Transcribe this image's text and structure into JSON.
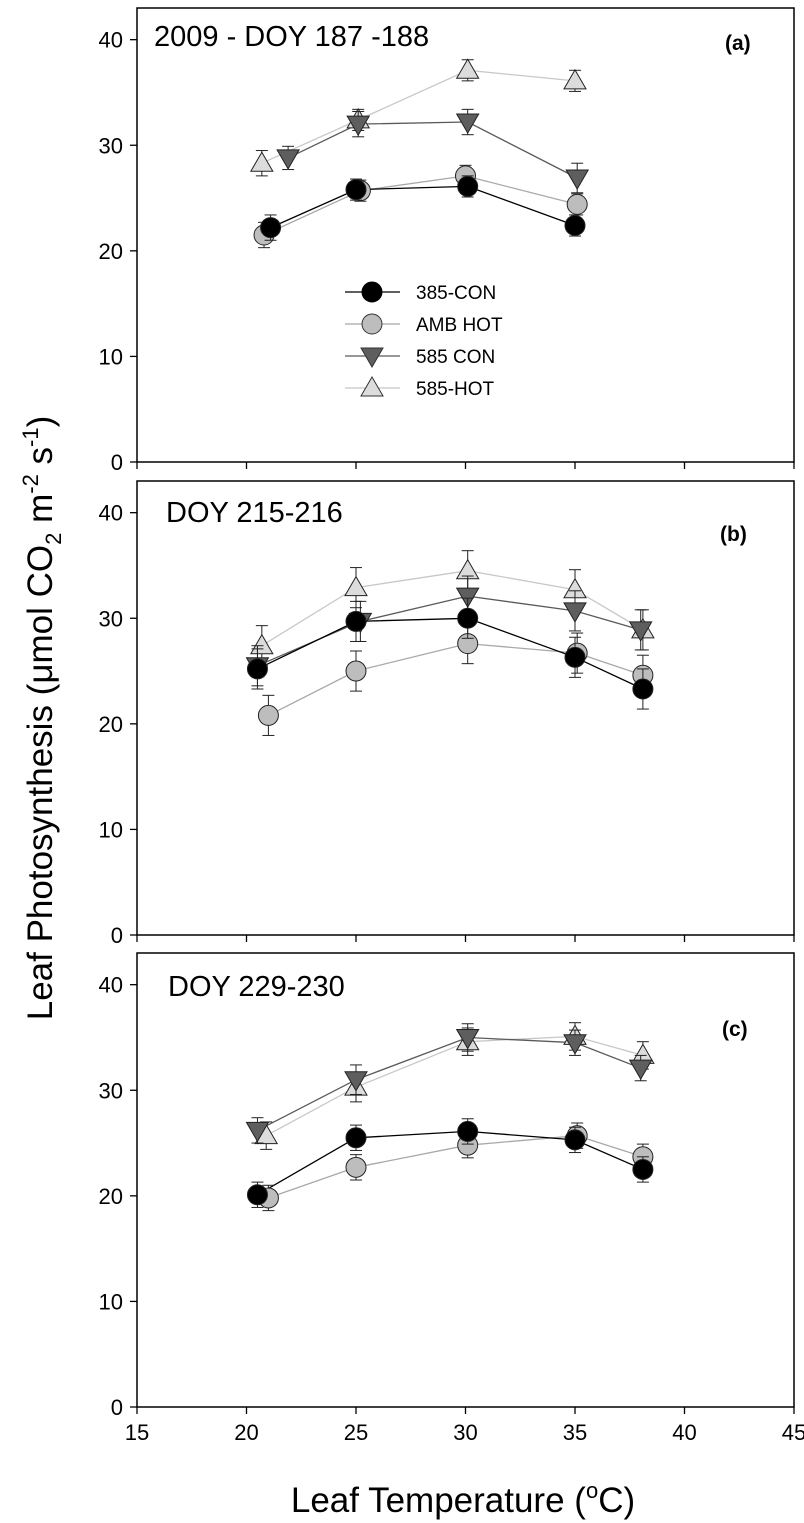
{
  "chart_data": {
    "type": "line",
    "x_axis": {
      "title_main": "Leaf Temperature (",
      "title_sup": "o",
      "title_end": "C)",
      "range": [
        15,
        45
      ],
      "ticks": [
        "15",
        "20",
        "25",
        "30",
        "35",
        "40",
        "45"
      ]
    },
    "y_axis": {
      "title_main": "Leaf  Photosynthesis (μmol CO",
      "title_sub": "2",
      "title_mid": " m",
      "title_sup1": "-2",
      "title_mid2": " s",
      "title_sup2": "-1",
      "title_end": ")",
      "range": [
        0,
        43
      ],
      "ticks": [
        "0",
        "10",
        "20",
        "30",
        "40"
      ]
    },
    "legend": {
      "location": "panel (a), center-left",
      "entries": [
        {
          "label": "385-CON"
        },
        {
          "label": "AMB HOT"
        },
        {
          "label": "585 CON"
        },
        {
          "label": "585-HOT"
        }
      ]
    },
    "series_styles": [
      {
        "marker": "circle",
        "fill": "#000000",
        "line": "#000000"
      },
      {
        "marker": "circle",
        "fill": "#bdbdbd",
        "line": "#a8a8a8"
      },
      {
        "marker": "triangle-down",
        "fill": "#5e5e5e",
        "line": "#5a5a5a"
      },
      {
        "marker": "triangle-up",
        "fill": "#dcdcdc",
        "line": "#c8c8c8"
      }
    ],
    "panels": [
      {
        "title": "2009 - DOY 187 -188",
        "letter": "(a)",
        "series": [
          {
            "name": "385-CON",
            "points": [
              {
                "x": 21.1,
                "y": 22.2,
                "err": 1.2
              },
              {
                "x": 25.0,
                "y": 25.8,
                "err": 1.0
              },
              {
                "x": 30.1,
                "y": 26.1,
                "err": 1.0
              },
              {
                "x": 35.0,
                "y": 22.4,
                "err": 1.0
              }
            ]
          },
          {
            "name": "AMB HOT",
            "points": [
              {
                "x": 20.8,
                "y": 21.5,
                "err": 1.2
              },
              {
                "x": 25.2,
                "y": 25.7,
                "err": 1.0
              },
              {
                "x": 30.0,
                "y": 27.1,
                "err": 1.0
              },
              {
                "x": 35.1,
                "y": 24.4,
                "err": 1.0
              }
            ]
          },
          {
            "name": "585 CON",
            "points": [
              {
                "x": 21.9,
                "y": 28.8,
                "err": 1.1
              },
              {
                "x": 25.1,
                "y": 32.0,
                "err": 1.2
              },
              {
                "x": 30.1,
                "y": 32.2,
                "err": 1.2
              },
              {
                "x": 35.1,
                "y": 26.9,
                "err": 1.4
              }
            ]
          },
          {
            "name": "585-HOT",
            "points": [
              {
                "x": 20.7,
                "y": 28.3,
                "err": 1.2
              },
              {
                "x": 25.1,
                "y": 32.4,
                "err": 1.0
              },
              {
                "x": 30.1,
                "y": 37.1,
                "err": 1.0
              },
              {
                "x": 35.0,
                "y": 36.1,
                "err": 1.0
              }
            ]
          }
        ]
      },
      {
        "title": "DOY 215-216",
        "letter": "(b)",
        "series": [
          {
            "name": "385-CON",
            "points": [
              {
                "x": 20.5,
                "y": 25.2,
                "err": 1.9
              },
              {
                "x": 25.0,
                "y": 29.7,
                "err": 1.9
              },
              {
                "x": 30.1,
                "y": 30.0,
                "err": 1.9
              },
              {
                "x": 35.0,
                "y": 26.3,
                "err": 1.9
              },
              {
                "x": 38.1,
                "y": 23.3,
                "err": 1.9
              }
            ]
          },
          {
            "name": "AMB HOT",
            "points": [
              {
                "x": 21.0,
                "y": 20.8,
                "err": 1.9
              },
              {
                "x": 25.0,
                "y": 25.0,
                "err": 1.9
              },
              {
                "x": 30.1,
                "y": 27.6,
                "err": 1.9
              },
              {
                "x": 35.1,
                "y": 26.7,
                "err": 1.9
              },
              {
                "x": 38.1,
                "y": 24.6,
                "err": 1.9
              }
            ]
          },
          {
            "name": "585 CON",
            "points": [
              {
                "x": 20.5,
                "y": 25.5,
                "err": 1.9
              },
              {
                "x": 25.2,
                "y": 29.7,
                "err": 1.9
              },
              {
                "x": 30.1,
                "y": 32.1,
                "err": 1.9
              },
              {
                "x": 35.0,
                "y": 30.7,
                "err": 1.9
              },
              {
                "x": 38.0,
                "y": 28.9,
                "err": 1.9
              }
            ]
          },
          {
            "name": "585-HOT",
            "points": [
              {
                "x": 20.7,
                "y": 27.4,
                "err": 1.9
              },
              {
                "x": 25.0,
                "y": 32.9,
                "err": 1.9
              },
              {
                "x": 30.1,
                "y": 34.5,
                "err": 1.9
              },
              {
                "x": 35.0,
                "y": 32.7,
                "err": 1.9
              },
              {
                "x": 38.1,
                "y": 28.9,
                "err": 1.9
              }
            ]
          }
        ]
      },
      {
        "title": "DOY 229-230",
        "letter": "(c)",
        "series": [
          {
            "name": "385-CON",
            "points": [
              {
                "x": 20.5,
                "y": 20.1,
                "err": 1.2
              },
              {
                "x": 25.0,
                "y": 25.5,
                "err": 1.2
              },
              {
                "x": 30.1,
                "y": 26.1,
                "err": 1.2
              },
              {
                "x": 35.0,
                "y": 25.3,
                "err": 1.2
              },
              {
                "x": 38.1,
                "y": 22.5,
                "err": 1.2
              }
            ]
          },
          {
            "name": "AMB HOT",
            "points": [
              {
                "x": 21.0,
                "y": 19.8,
                "err": 1.2
              },
              {
                "x": 25.0,
                "y": 22.7,
                "err": 1.2
              },
              {
                "x": 30.1,
                "y": 24.8,
                "err": 1.2
              },
              {
                "x": 35.1,
                "y": 25.7,
                "err": 1.2
              },
              {
                "x": 38.1,
                "y": 23.7,
                "err": 1.2
              }
            ]
          },
          {
            "name": "585 CON",
            "points": [
              {
                "x": 20.5,
                "y": 26.2,
                "err": 1.2
              },
              {
                "x": 25.0,
                "y": 31.0,
                "err": 1.4
              },
              {
                "x": 30.1,
                "y": 35.0,
                "err": 1.3
              },
              {
                "x": 35.0,
                "y": 34.5,
                "err": 1.2
              },
              {
                "x": 38.0,
                "y": 32.1,
                "err": 1.2
              }
            ]
          },
          {
            "name": "585-HOT",
            "points": [
              {
                "x": 20.9,
                "y": 25.7,
                "err": 1.3
              },
              {
                "x": 25.0,
                "y": 30.3,
                "err": 1.4
              },
              {
                "x": 30.1,
                "y": 34.6,
                "err": 1.3
              },
              {
                "x": 35.0,
                "y": 35.1,
                "err": 1.3
              },
              {
                "x": 38.1,
                "y": 33.3,
                "err": 1.3
              }
            ]
          }
        ]
      }
    ]
  }
}
